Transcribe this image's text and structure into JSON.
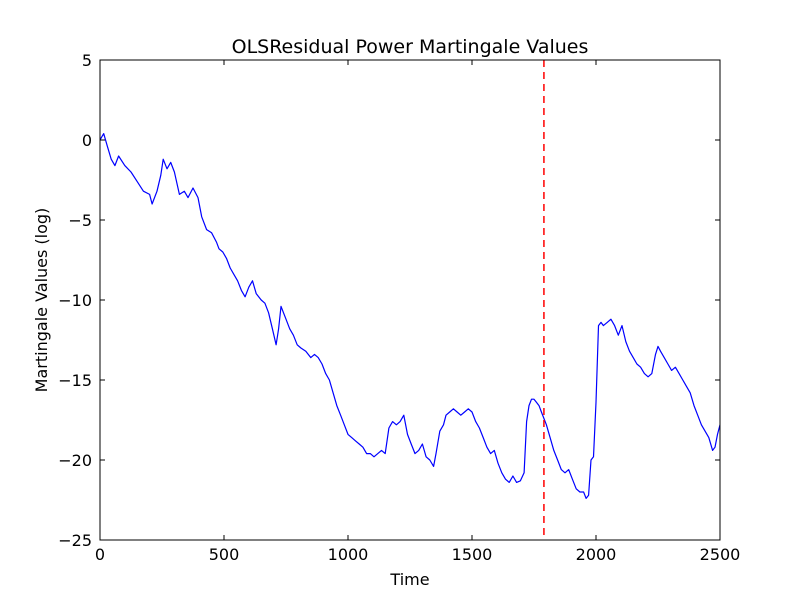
{
  "chart_data": {
    "type": "line",
    "title": "OLSResidual Power Martingale Values",
    "xlabel": "Time",
    "ylabel": "Martingale Values (log)",
    "xlim": [
      0,
      2500
    ],
    "ylim": [
      -25,
      5
    ],
    "xticks": [
      0,
      500,
      1000,
      1500,
      2000,
      2500
    ],
    "yticks": [
      5,
      0,
      -5,
      -10,
      -15,
      -20,
      -25
    ],
    "grid": false,
    "legend": "none",
    "colors": {
      "series": "#0000ff",
      "changepoint": "#ff0000"
    },
    "series": [
      {
        "x": [
          0,
          15,
          30,
          45,
          60,
          75,
          100,
          125,
          150,
          175,
          200,
          210,
          230,
          245,
          255,
          270,
          285,
          300,
          320,
          340,
          355,
          375,
          395,
          410,
          430,
          450,
          470,
          480,
          495,
          510,
          525,
          540,
          555,
          570,
          585,
          600,
          615,
          630,
          650,
          665,
          680,
          695,
          710,
          720,
          730,
          750,
          765,
          780,
          795,
          810,
          830,
          850,
          865,
          880,
          895,
          910,
          925,
          940,
          955,
          970,
          985,
          1000,
          1015,
          1030,
          1045,
          1060,
          1075,
          1090,
          1105,
          1120,
          1135,
          1150,
          1165,
          1180,
          1195,
          1210,
          1225,
          1240,
          1255,
          1270,
          1285,
          1300,
          1315,
          1330,
          1345,
          1355,
          1370,
          1385,
          1395,
          1410,
          1425,
          1440,
          1455,
          1470,
          1485,
          1500,
          1515,
          1530,
          1545,
          1560,
          1575,
          1590,
          1605,
          1620,
          1635,
          1650,
          1665,
          1680,
          1695,
          1710,
          1720,
          1730,
          1740,
          1750,
          1760,
          1770,
          1780,
          1790,
          1800,
          1815,
          1830,
          1845,
          1860,
          1875,
          1890,
          1905,
          1920,
          1935,
          1950,
          1960,
          1970,
          1980,
          1990,
          2000,
          2010,
          2020,
          2030,
          2045,
          2060,
          2075,
          2090,
          2105,
          2120,
          2135,
          2150,
          2165,
          2180,
          2195,
          2210,
          2225,
          2240,
          2250,
          2260,
          2275,
          2290,
          2305,
          2320,
          2335,
          2350,
          2365,
          2380,
          2395,
          2410,
          2425,
          2440,
          2455,
          2470,
          2480,
          2490,
          2500
        ],
        "y": [
          0,
          0.4,
          -0.4,
          -1.2,
          -1.6,
          -1.0,
          -1.6,
          -2.0,
          -2.6,
          -3.2,
          -3.4,
          -4.0,
          -3.2,
          -2.2,
          -1.2,
          -1.8,
          -1.4,
          -2.0,
          -3.4,
          -3.2,
          -3.6,
          -3.0,
          -3.6,
          -4.8,
          -5.6,
          -5.8,
          -6.4,
          -6.8,
          -7.0,
          -7.4,
          -8.0,
          -8.4,
          -8.8,
          -9.4,
          -9.8,
          -9.2,
          -8.8,
          -9.6,
          -10.0,
          -10.2,
          -10.8,
          -11.8,
          -12.8,
          -11.8,
          -10.4,
          -11.2,
          -11.8,
          -12.2,
          -12.8,
          -13.0,
          -13.2,
          -13.6,
          -13.4,
          -13.6,
          -14.0,
          -14.6,
          -15.0,
          -15.8,
          -16.6,
          -17.2,
          -17.8,
          -18.4,
          -18.6,
          -18.8,
          -19.0,
          -19.2,
          -19.6,
          -19.6,
          -19.8,
          -19.6,
          -19.4,
          -19.6,
          -18.0,
          -17.6,
          -17.8,
          -17.6,
          -17.2,
          -18.4,
          -19.0,
          -19.6,
          -19.4,
          -19.0,
          -19.8,
          -20.0,
          -20.4,
          -19.6,
          -18.2,
          -17.8,
          -17.2,
          -17.0,
          -16.8,
          -17.0,
          -17.2,
          -17.0,
          -16.8,
          -17.0,
          -17.6,
          -18.0,
          -18.6,
          -19.2,
          -19.6,
          -19.4,
          -20.2,
          -20.8,
          -21.2,
          -21.4,
          -21.0,
          -21.4,
          -21.3,
          -20.8,
          -17.6,
          -16.6,
          -16.2,
          -16.2,
          -16.4,
          -16.6,
          -17.0,
          -17.4,
          -17.8,
          -18.6,
          -19.4,
          -20.0,
          -20.6,
          -20.8,
          -20.6,
          -21.2,
          -21.8,
          -22.0,
          -22.0,
          -22.4,
          -22.2,
          -20.0,
          -19.8,
          -16.4,
          -11.6,
          -11.4,
          -11.6,
          -11.4,
          -11.2,
          -11.6,
          -12.2,
          -11.6,
          -12.6,
          -13.2,
          -13.6,
          -14.0,
          -14.2,
          -14.6,
          -14.8,
          -14.6,
          -13.4,
          -12.9,
          -13.2,
          -13.6,
          -14.0,
          -14.4,
          -14.2,
          -14.6,
          -15.0,
          -15.4,
          -15.8,
          -16.6,
          -17.2,
          -17.8,
          -18.2,
          -18.6,
          -19.4,
          -19.2,
          -18.4,
          -17.8
        ]
      }
    ],
    "annotations": [
      {
        "type": "vline",
        "x": 1790,
        "style": "dashed"
      }
    ]
  }
}
